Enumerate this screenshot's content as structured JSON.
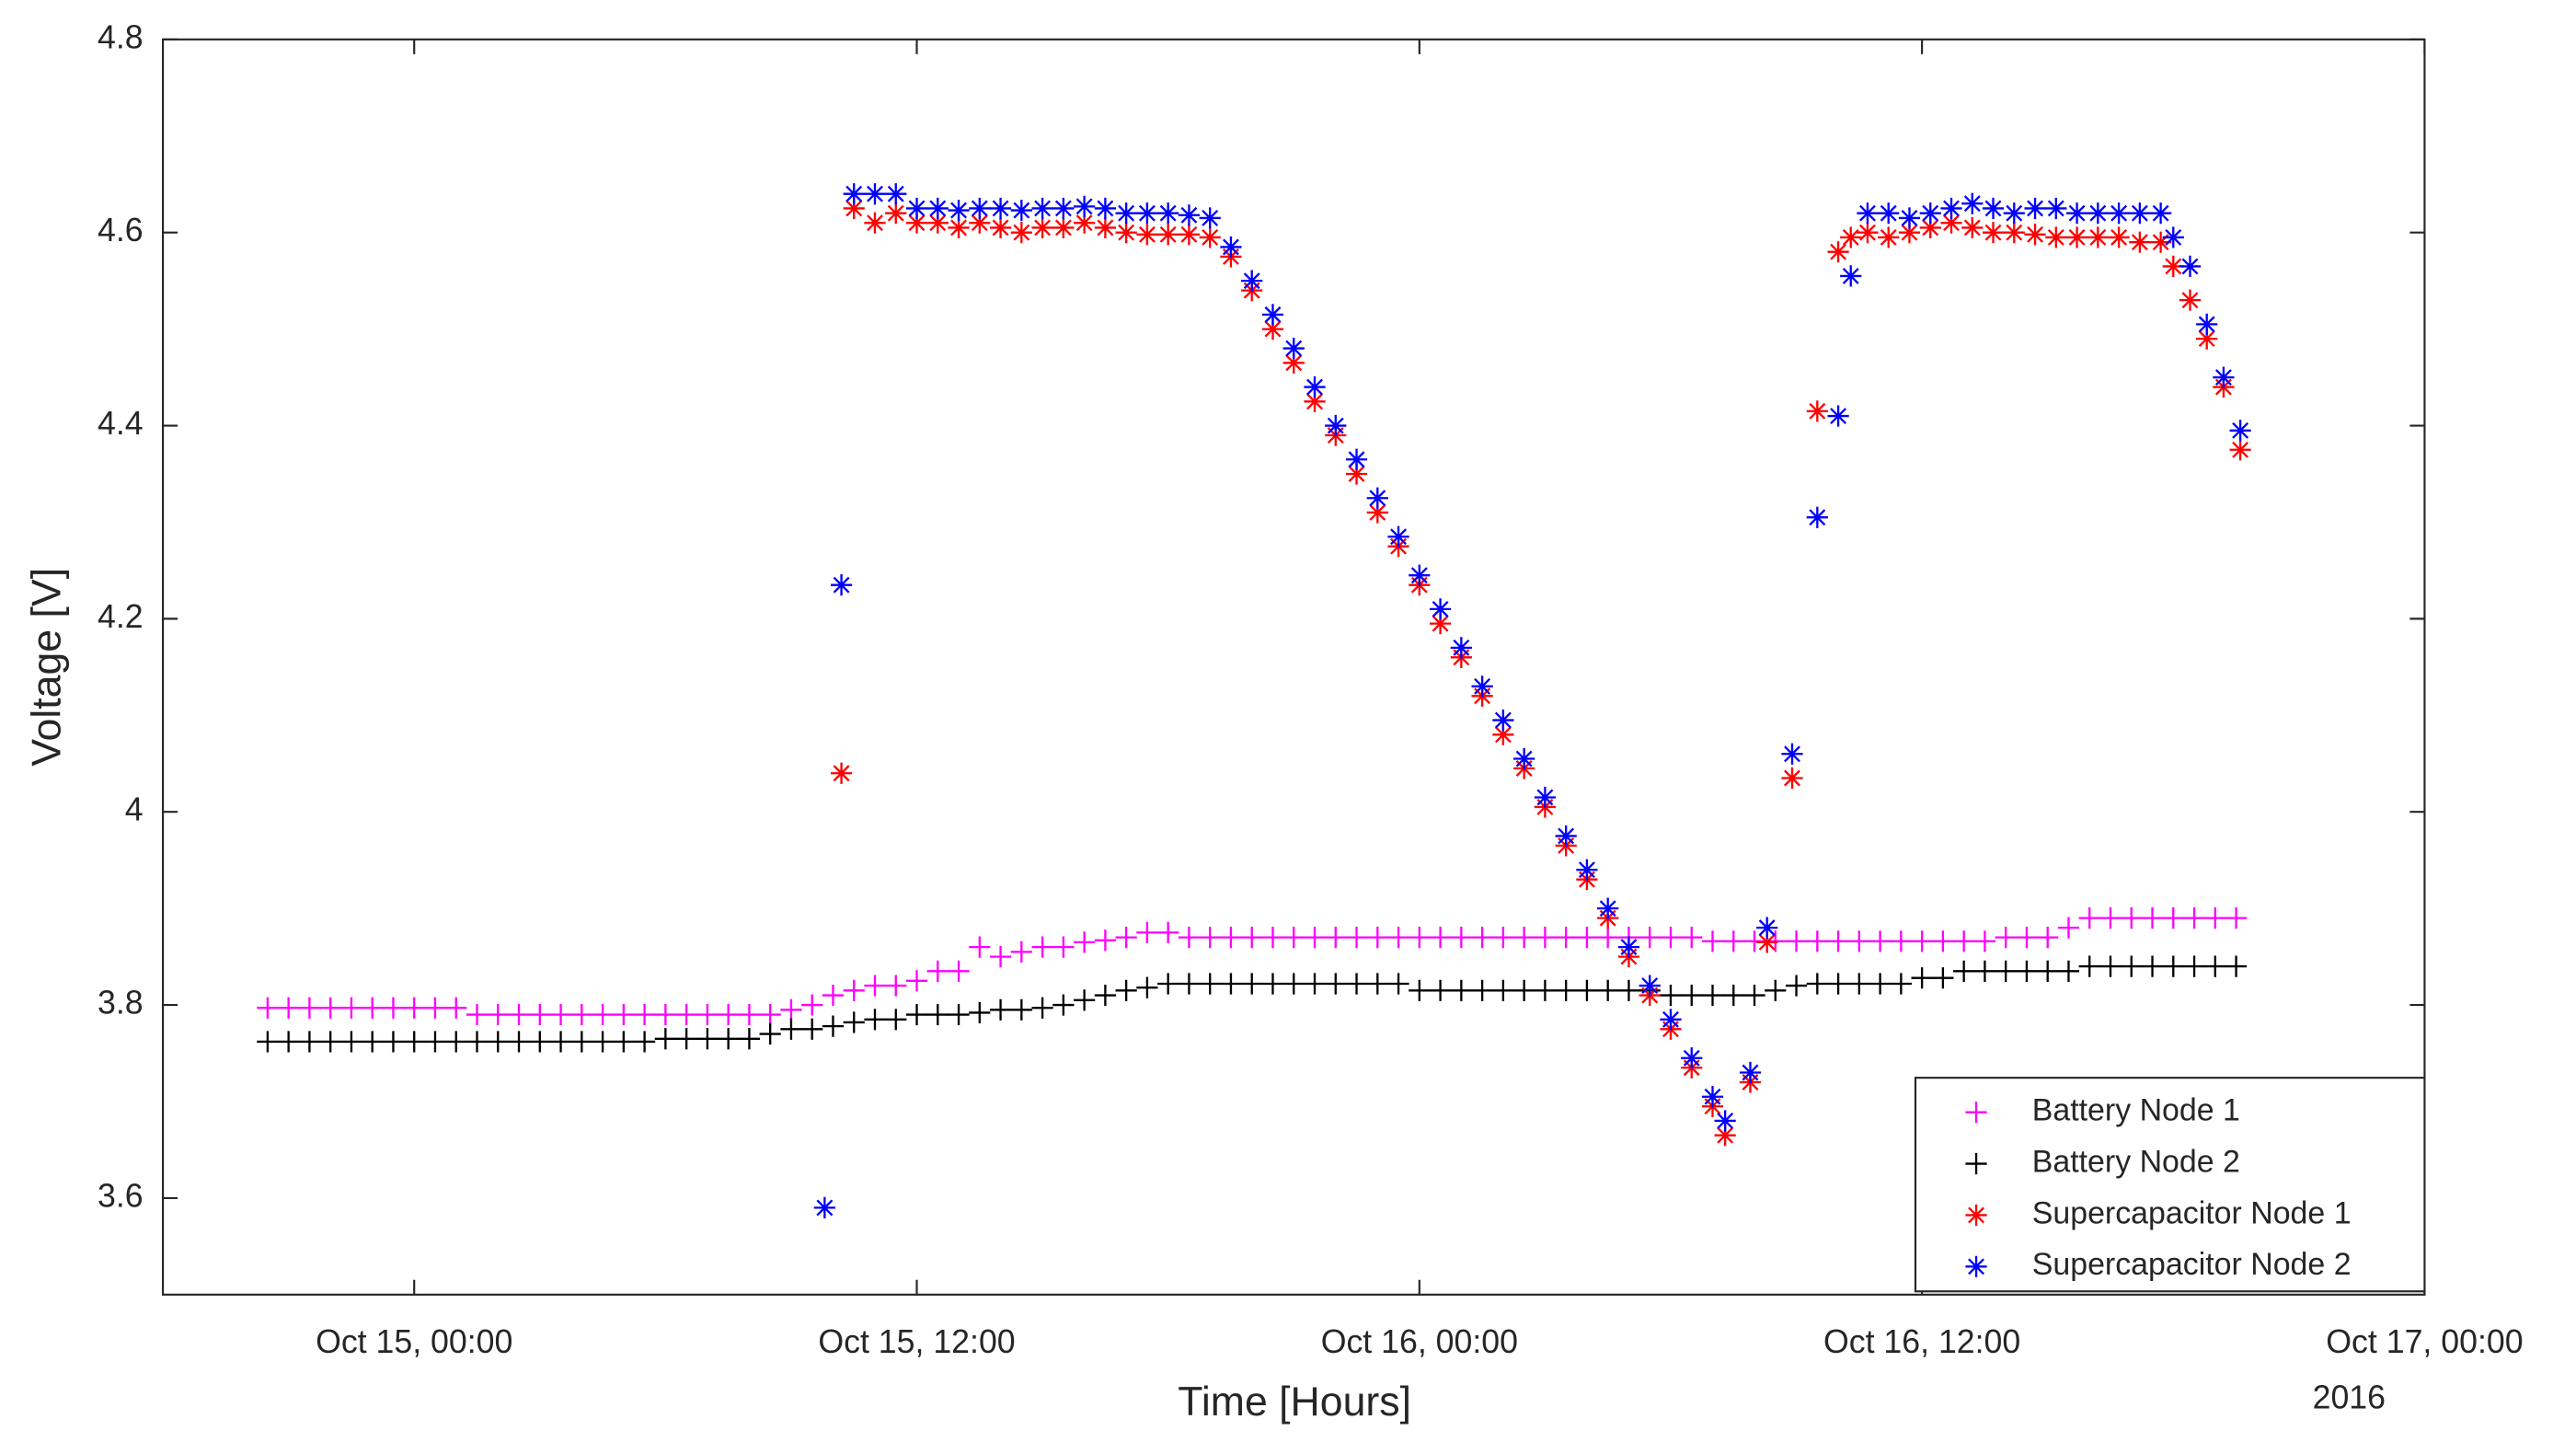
{
  "chart_data": {
    "type": "scatter",
    "xlabel": "Time [Hours]",
    "ylabel": "Voltage [V]",
    "annotation": "2016",
    "xlim": [
      -6,
      48
    ],
    "xticks": [
      {
        "value": 0,
        "label": "Oct 15, 00:00"
      },
      {
        "value": 12,
        "label": "Oct 15, 12:00"
      },
      {
        "value": 24,
        "label": "Oct 16, 00:00"
      },
      {
        "value": 36,
        "label": "Oct 16, 12:00"
      },
      {
        "value": 48,
        "label": "Oct 17, 00:00"
      }
    ],
    "ylim": [
      3.5,
      4.8
    ],
    "yticks": [
      3.6,
      3.8,
      4,
      4.2,
      4.4,
      4.6,
      4.8
    ],
    "grid": false,
    "legend": "lower right",
    "series": [
      {
        "name": "Battery Node 1",
        "color": "#ff00ff",
        "marker": "plus",
        "x": [
          -3.5,
          -3,
          -2.5,
          -2,
          -1.5,
          -1,
          -0.5,
          0,
          0.5,
          1,
          1.5,
          2,
          2.5,
          3,
          3.5,
          4,
          4.5,
          5,
          5.5,
          6,
          6.5,
          7,
          7.5,
          8,
          8.5,
          9,
          9.5,
          10,
          10.5,
          11,
          11.5,
          12,
          12.5,
          13,
          13.5,
          14,
          14.5,
          15,
          15.5,
          16,
          16.5,
          17,
          17.5,
          18,
          18.5,
          19,
          19.5,
          20,
          20.5,
          21,
          21.5,
          22,
          22.5,
          23,
          23.5,
          24,
          24.5,
          25,
          25.5,
          26,
          26.5,
          27,
          27.5,
          28,
          28.5,
          29,
          29.5,
          30,
          30.5,
          31,
          31.5,
          32,
          32.5,
          33,
          33.5,
          34,
          34.5,
          35,
          35.5,
          36,
          36.5,
          37,
          37.5,
          38,
          38.5,
          39,
          39.5,
          40,
          40.5,
          41,
          41.5,
          42,
          42.5,
          43,
          43.5
        ],
        "values": [
          3.797,
          3.797,
          3.797,
          3.797,
          3.797,
          3.797,
          3.797,
          3.797,
          3.797,
          3.797,
          3.79,
          3.79,
          3.79,
          3.79,
          3.79,
          3.79,
          3.79,
          3.79,
          3.79,
          3.79,
          3.79,
          3.79,
          3.79,
          3.79,
          3.79,
          3.795,
          3.8,
          3.81,
          3.815,
          3.82,
          3.82,
          3.825,
          3.835,
          3.835,
          3.86,
          3.85,
          3.855,
          3.86,
          3.86,
          3.865,
          3.867,
          3.87,
          3.875,
          3.875,
          3.87,
          3.87,
          3.87,
          3.87,
          3.87,
          3.87,
          3.87,
          3.87,
          3.87,
          3.87,
          3.87,
          3.87,
          3.87,
          3.87,
          3.87,
          3.87,
          3.87,
          3.87,
          3.87,
          3.87,
          3.87,
          3.87,
          3.87,
          3.87,
          3.87,
          3.866,
          3.866,
          3.866,
          3.866,
          3.866,
          3.866,
          3.866,
          3.866,
          3.866,
          3.866,
          3.866,
          3.866,
          3.866,
          3.866,
          3.87,
          3.87,
          3.87,
          3.88,
          3.89,
          3.89,
          3.89,
          3.89,
          3.89,
          3.89,
          3.89,
          3.89
        ]
      },
      {
        "name": "Battery Node 2",
        "color": "#000000",
        "marker": "plus",
        "x": [
          -3.5,
          -3,
          -2.5,
          -2,
          -1.5,
          -1,
          -0.5,
          0,
          0.5,
          1,
          1.5,
          2,
          2.5,
          3,
          3.5,
          4,
          4.5,
          5,
          5.5,
          6,
          6.5,
          7,
          7.5,
          8,
          8.5,
          9,
          9.5,
          10,
          10.5,
          11,
          11.5,
          12,
          12.5,
          13,
          13.5,
          14,
          14.5,
          15,
          15.5,
          16,
          16.5,
          17,
          17.5,
          18,
          18.5,
          19,
          19.5,
          20,
          20.5,
          21,
          21.5,
          22,
          22.5,
          23,
          23.5,
          24,
          24.5,
          25,
          25.5,
          26,
          26.5,
          27,
          27.5,
          28,
          28.5,
          29,
          29.5,
          30,
          30.5,
          31,
          31.5,
          32,
          32.5,
          33,
          33.5,
          34,
          34.5,
          35,
          35.5,
          36,
          36.5,
          37,
          37.5,
          38,
          38.5,
          39,
          39.5,
          40,
          40.5,
          41,
          41.5,
          42,
          42.5,
          43,
          43.5
        ],
        "values": [
          3.762,
          3.762,
          3.762,
          3.762,
          3.762,
          3.762,
          3.762,
          3.762,
          3.762,
          3.762,
          3.762,
          3.762,
          3.762,
          3.762,
          3.762,
          3.762,
          3.762,
          3.762,
          3.762,
          3.765,
          3.765,
          3.765,
          3.765,
          3.765,
          3.77,
          3.775,
          3.775,
          3.778,
          3.782,
          3.785,
          3.785,
          3.79,
          3.79,
          3.79,
          3.792,
          3.795,
          3.795,
          3.797,
          3.8,
          3.805,
          3.81,
          3.815,
          3.818,
          3.822,
          3.822,
          3.822,
          3.822,
          3.822,
          3.822,
          3.822,
          3.822,
          3.822,
          3.822,
          3.822,
          3.822,
          3.815,
          3.815,
          3.815,
          3.815,
          3.815,
          3.815,
          3.815,
          3.815,
          3.815,
          3.815,
          3.815,
          3.815,
          3.81,
          3.81,
          3.81,
          3.81,
          3.81,
          3.815,
          3.82,
          3.822,
          3.822,
          3.822,
          3.822,
          3.822,
          3.828,
          3.828,
          3.835,
          3.835,
          3.835,
          3.835,
          3.835,
          3.835,
          3.84,
          3.84,
          3.84,
          3.84,
          3.84,
          3.84,
          3.84,
          3.84
        ]
      },
      {
        "name": "Supercapacitor Node 1",
        "color": "#ff0000",
        "marker": "asterisk",
        "x": [
          10.2,
          10.5,
          11,
          11.5,
          12,
          12.5,
          13,
          13.5,
          14,
          14.5,
          15,
          15.5,
          16,
          16.5,
          17,
          17.5,
          18,
          18.5,
          19,
          19.5,
          20,
          20.5,
          21,
          21.5,
          22,
          22.5,
          23,
          23.5,
          24,
          24.5,
          25,
          25.5,
          26,
          26.5,
          27,
          27.5,
          28,
          28.5,
          29,
          29.5,
          30,
          30.5,
          31,
          31.3,
          31.9,
          32.3,
          32.9,
          33.5,
          34,
          34.3,
          34.7,
          35.2,
          35.7,
          36.2,
          36.7,
          37.2,
          37.7,
          38.2,
          38.7,
          39.2,
          39.7,
          40.2,
          40.7,
          41.2,
          41.7,
          42,
          42.4,
          42.8,
          43.2,
          43.6
        ],
        "values": [
          4.04,
          4.625,
          4.61,
          4.62,
          4.61,
          4.61,
          4.605,
          4.61,
          4.605,
          4.6,
          4.605,
          4.605,
          4.61,
          4.605,
          4.6,
          4.598,
          4.598,
          4.598,
          4.595,
          4.575,
          4.54,
          4.5,
          4.465,
          4.425,
          4.39,
          4.35,
          4.31,
          4.275,
          4.235,
          4.195,
          4.16,
          4.12,
          4.08,
          4.045,
          4.005,
          3.965,
          3.93,
          3.89,
          3.85,
          3.81,
          3.775,
          3.735,
          3.695,
          3.665,
          3.72,
          3.865,
          4.035,
          4.415,
          4.58,
          4.595,
          4.6,
          4.595,
          4.6,
          4.605,
          4.61,
          4.605,
          4.6,
          4.6,
          4.598,
          4.595,
          4.595,
          4.595,
          4.595,
          4.59,
          4.59,
          4.565,
          4.53,
          4.49,
          4.44,
          4.375
        ]
      },
      {
        "name": "Supercapacitor Node 2",
        "color": "#0000ff",
        "marker": "asterisk",
        "x": [
          9.8,
          10.2,
          10.5,
          11,
          11.5,
          12,
          12.5,
          13,
          13.5,
          14,
          14.5,
          15,
          15.5,
          16,
          16.5,
          17,
          17.5,
          18,
          18.5,
          19,
          19.5,
          20,
          20.5,
          21,
          21.5,
          22,
          22.5,
          23,
          23.5,
          24,
          24.5,
          25,
          25.5,
          26,
          26.5,
          27,
          27.5,
          28,
          28.5,
          29,
          29.5,
          30,
          30.5,
          31,
          31.3,
          31.9,
          32.3,
          32.9,
          33.5,
          34,
          34.3,
          34.7,
          35.2,
          35.7,
          36.2,
          36.7,
          37.2,
          37.7,
          38.2,
          38.7,
          39.2,
          39.7,
          40.2,
          40.7,
          41.2,
          41.7,
          42,
          42.4,
          42.8,
          43.2,
          43.6
        ],
        "values": [
          3.59,
          4.235,
          4.64,
          4.64,
          4.64,
          4.625,
          4.625,
          4.623,
          4.625,
          4.625,
          4.623,
          4.625,
          4.625,
          4.627,
          4.625,
          4.62,
          4.62,
          4.62,
          4.618,
          4.615,
          4.585,
          4.55,
          4.515,
          4.48,
          4.44,
          4.4,
          4.365,
          4.325,
          4.285,
          4.245,
          4.21,
          4.17,
          4.13,
          4.095,
          4.055,
          4.015,
          3.975,
          3.94,
          3.9,
          3.86,
          3.82,
          3.785,
          3.745,
          3.705,
          3.68,
          3.73,
          3.88,
          4.06,
          4.305,
          4.41,
          4.555,
          4.62,
          4.62,
          4.615,
          4.62,
          4.625,
          4.63,
          4.625,
          4.62,
          4.625,
          4.625,
          4.62,
          4.62,
          4.62,
          4.62,
          4.62,
          4.595,
          4.565,
          4.505,
          4.45,
          4.395
        ]
      }
    ]
  }
}
